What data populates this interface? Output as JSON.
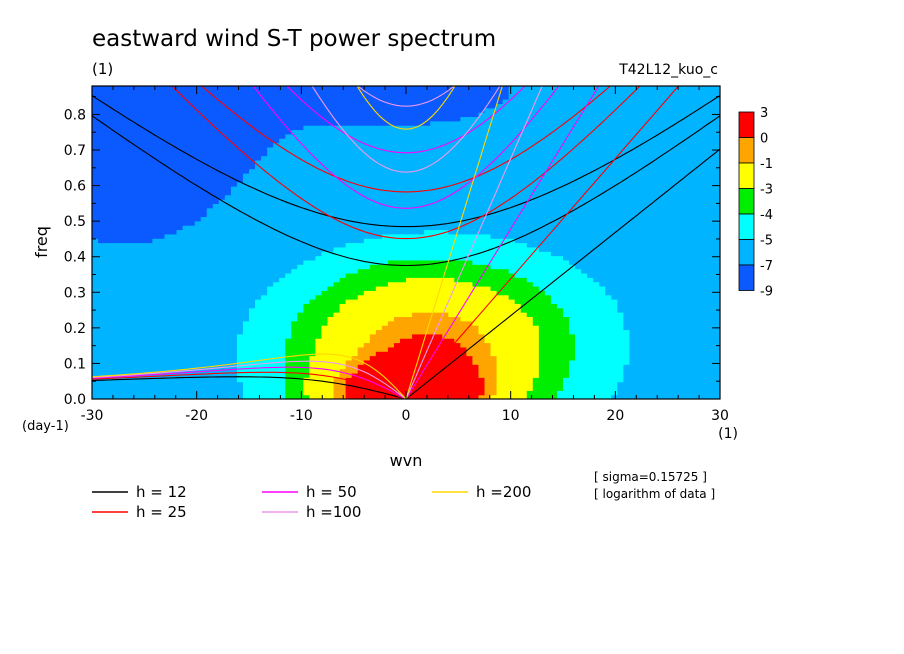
{
  "chart_data": {
    "type": "heatmap",
    "title": "eastward wind S-T power spectrum",
    "subtitle": "(1)",
    "run_label": "T42L12_kuo_c",
    "xlabel": "wvn",
    "ylabel": "freq",
    "x_unit_label": "(1)",
    "y_unit_label": "(day-1)",
    "xlim": [
      -30,
      30
    ],
    "ylim": [
      0,
      0.88
    ],
    "x_ticks": [
      -30,
      -20,
      -10,
      0,
      10,
      20,
      30
    ],
    "x_tick_labels": [
      "-30",
      "-20",
      "-10",
      "0",
      "10",
      "20",
      "30"
    ],
    "y_ticks": [
      0,
      0.1,
      0.2,
      0.3,
      0.4,
      0.5,
      0.6,
      0.7,
      0.8
    ],
    "y_tick_labels": [
      "0.0",
      "0.1",
      "0.2",
      "0.3",
      "0.4",
      "0.5",
      "0.6",
      "0.7",
      "0.8"
    ],
    "grid": false,
    "colorbar": {
      "labels": [
        "3",
        "0",
        "-1",
        "-3",
        "-4",
        "-5",
        "-7",
        "-9"
      ],
      "colors": [
        "#ff0000",
        "#ffa500",
        "#ffff00",
        "#00ee00",
        "#00ffff",
        "#00b4ff",
        "#0a5aff"
      ]
    },
    "contour_levels": [
      -7,
      -5,
      -4,
      -3,
      -1,
      0
    ],
    "level_colors": {
      "-9": "#0a5aff",
      "-7": "#00b4ff",
      "-5": "#00ffff",
      "-4": "#00ee00",
      "-3": "#ffff00",
      "-1": "#ffa500",
      "0": "#ff0000"
    },
    "field": {
      "background": -5.5,
      "blobs": [
        {
          "x0": 0,
          "y0": 0,
          "sx": 7,
          "sy": 0.09,
          "amp": 6.5
        },
        {
          "x0": 2,
          "y0": 0.13,
          "sx": 11,
          "sy": 0.2,
          "amp": 4.2
        },
        {
          "x0": 3,
          "y0": 0.22,
          "sx": 15,
          "sy": 0.32,
          "amp": 1.6
        },
        {
          "x0": -27,
          "y0": 0.7,
          "sx": 10,
          "sy": 0.3,
          "amp": -2.8
        },
        {
          "x0": 0,
          "y0": 0.88,
          "sx": 30,
          "sy": 0.4,
          "amp": -1.7
        }
      ]
    },
    "dispersion_curves": [
      {
        "name": "h = 12",
        "h": 12,
        "color": "#000000"
      },
      {
        "name": "h = 25",
        "h": 25,
        "color": "#ff0000"
      },
      {
        "name": "h = 50",
        "h": 50,
        "color": "#ff00ff"
      },
      {
        "name": "h =100",
        "h": 100,
        "color": "#ee99ee"
      },
      {
        "name": "h =200",
        "h": 200,
        "color": "#ffd700"
      }
    ],
    "notes": [
      "[ sigma=0.15725 ]",
      "[ logarithm of data ]"
    ]
  }
}
